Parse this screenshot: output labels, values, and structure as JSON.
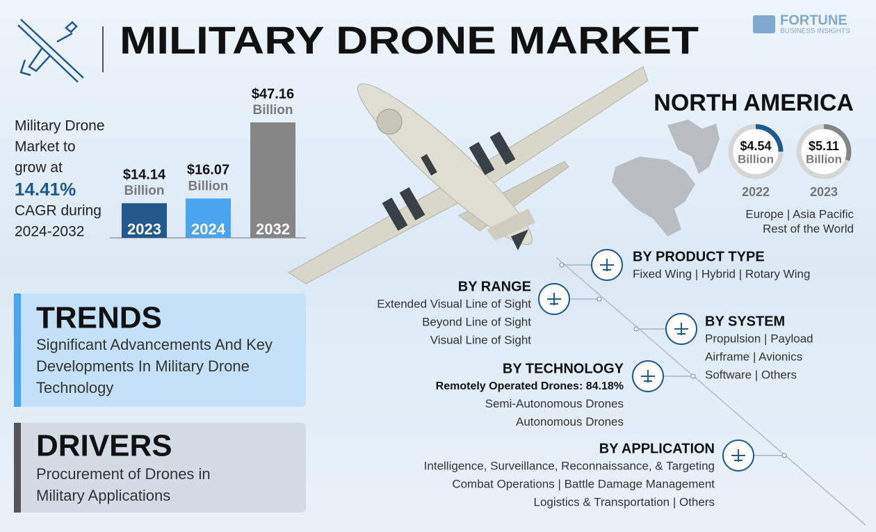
{
  "header": {
    "title": "MILITARY DRONE MARKET",
    "logo": {
      "name": "FORTUNE",
      "tagline": "BUSINESS INSIGHTS"
    }
  },
  "growth": {
    "lines": [
      "Military Drone",
      "Market to",
      "grow at"
    ],
    "cagr": "14.41%",
    "lines_after": [
      "CAGR during",
      "2024-2032"
    ]
  },
  "market_size": {
    "unit": "Billion",
    "categories": [
      "2023",
      "2024",
      "2032"
    ],
    "values": [
      14.14,
      16.07,
      47.16
    ],
    "value_labels": [
      "$14.14",
      "$16.07",
      "$47.16"
    ],
    "colors": [
      "#22598b",
      "#4ba4ef",
      "#858585"
    ]
  },
  "north_america": {
    "title": "NORTH AMERICA",
    "unit": "Billion",
    "years": [
      "2022",
      "2023"
    ],
    "value_labels": [
      "$4.54",
      "$5.11"
    ],
    "other_regions": [
      "Europe | Asia Pacific",
      "Rest of the World"
    ]
  },
  "trends": {
    "title": "TRENDS",
    "lines": [
      "Significant Advancements And Key",
      "Developments In Military Drone",
      "Technology"
    ]
  },
  "drivers": {
    "title": "DRIVERS",
    "lines": [
      "Procurement of Drones in",
      "Military Applications"
    ]
  },
  "segments": [
    {
      "title": "BY PRODUCT TYPE",
      "items": [
        "Fixed Wing | Hybrid | Rotary Wing"
      ]
    },
    {
      "title": "BY RANGE",
      "items": [
        "Extended Visual Line of Sight",
        "Beyond Line of Sight",
        "Visual Line of Sight"
      ]
    },
    {
      "title": "BY SYSTEM",
      "items": [
        "Propulsion | Payload",
        "Airframe | Avionics",
        "Software | Others"
      ]
    },
    {
      "title": "BY TECHNOLOGY",
      "highlight": "Remotely Operated Drones: 84.18%",
      "items": [
        "Semi-Autonomous Drones",
        "Autonomous Drones"
      ]
    },
    {
      "title": "BY APPLICATION",
      "items": [
        "Intelligence, Surveillance, Reconnaissance, & Targeting",
        "Combat Operations | Battle Damage Management",
        "Logistics & Transportation | Others"
      ]
    }
  ]
}
